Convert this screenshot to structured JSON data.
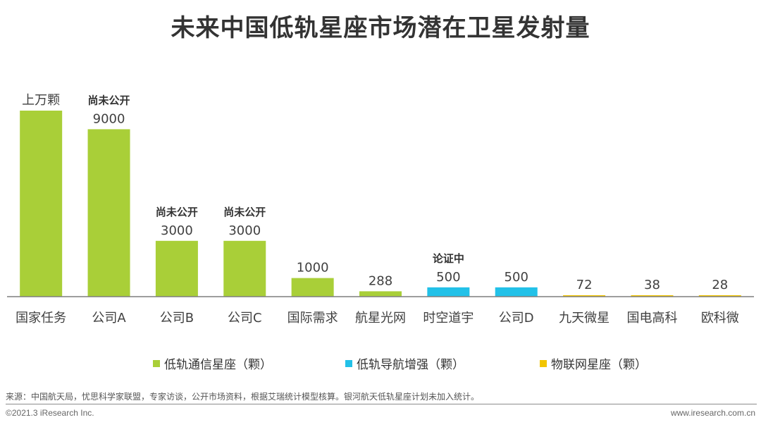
{
  "title": "未来中国低轨星座市场潜在卫星发射量",
  "colors": {
    "comm": "#a9cf38",
    "nav": "#22c1e8",
    "iot": "#f2c500",
    "axis": "#7f7f7f"
  },
  "chart_data": {
    "type": "bar",
    "categories": [
      "国家任务",
      "公司A",
      "公司B",
      "公司C",
      "国际需求",
      "航星光网",
      "时空道宇",
      "公司D",
      "九天微星",
      "国电高科",
      "欧科微"
    ],
    "series": [
      {
        "name": "低轨通信星座（颗）",
        "color_key": "comm",
        "values": [
          10000,
          9000,
          3000,
          3000,
          1000,
          288,
          null,
          null,
          null,
          null,
          null
        ]
      },
      {
        "name": "低轨导航增强（颗）",
        "color_key": "nav",
        "values": [
          null,
          null,
          null,
          null,
          null,
          null,
          500,
          500,
          null,
          null,
          null
        ]
      },
      {
        "name": "物联网星座（颗）",
        "color_key": "iot",
        "values": [
          null,
          null,
          null,
          null,
          null,
          null,
          null,
          null,
          72,
          38,
          28
        ]
      }
    ],
    "value_labels": [
      "上万颗",
      "9000",
      "3000",
      "3000",
      "1000",
      "288",
      "500",
      "500",
      "72",
      "38",
      "28"
    ],
    "status_notes": [
      "",
      "尚未公开",
      "尚未公开",
      "尚未公开",
      "",
      "",
      "论证中",
      "",
      "",
      "",
      ""
    ],
    "ylim": [
      0,
      10000
    ],
    "grid": false,
    "legend_position": "bottom"
  },
  "source": "来源：中国航天局，忧思科学家联盟，专家访谈，公开市场资料，根据艾瑞统计模型核算。银河航天低轨星座计划未加入统计。",
  "copyright": "©2021.3 iResearch Inc.",
  "website": "www.iresearch.com.cn"
}
